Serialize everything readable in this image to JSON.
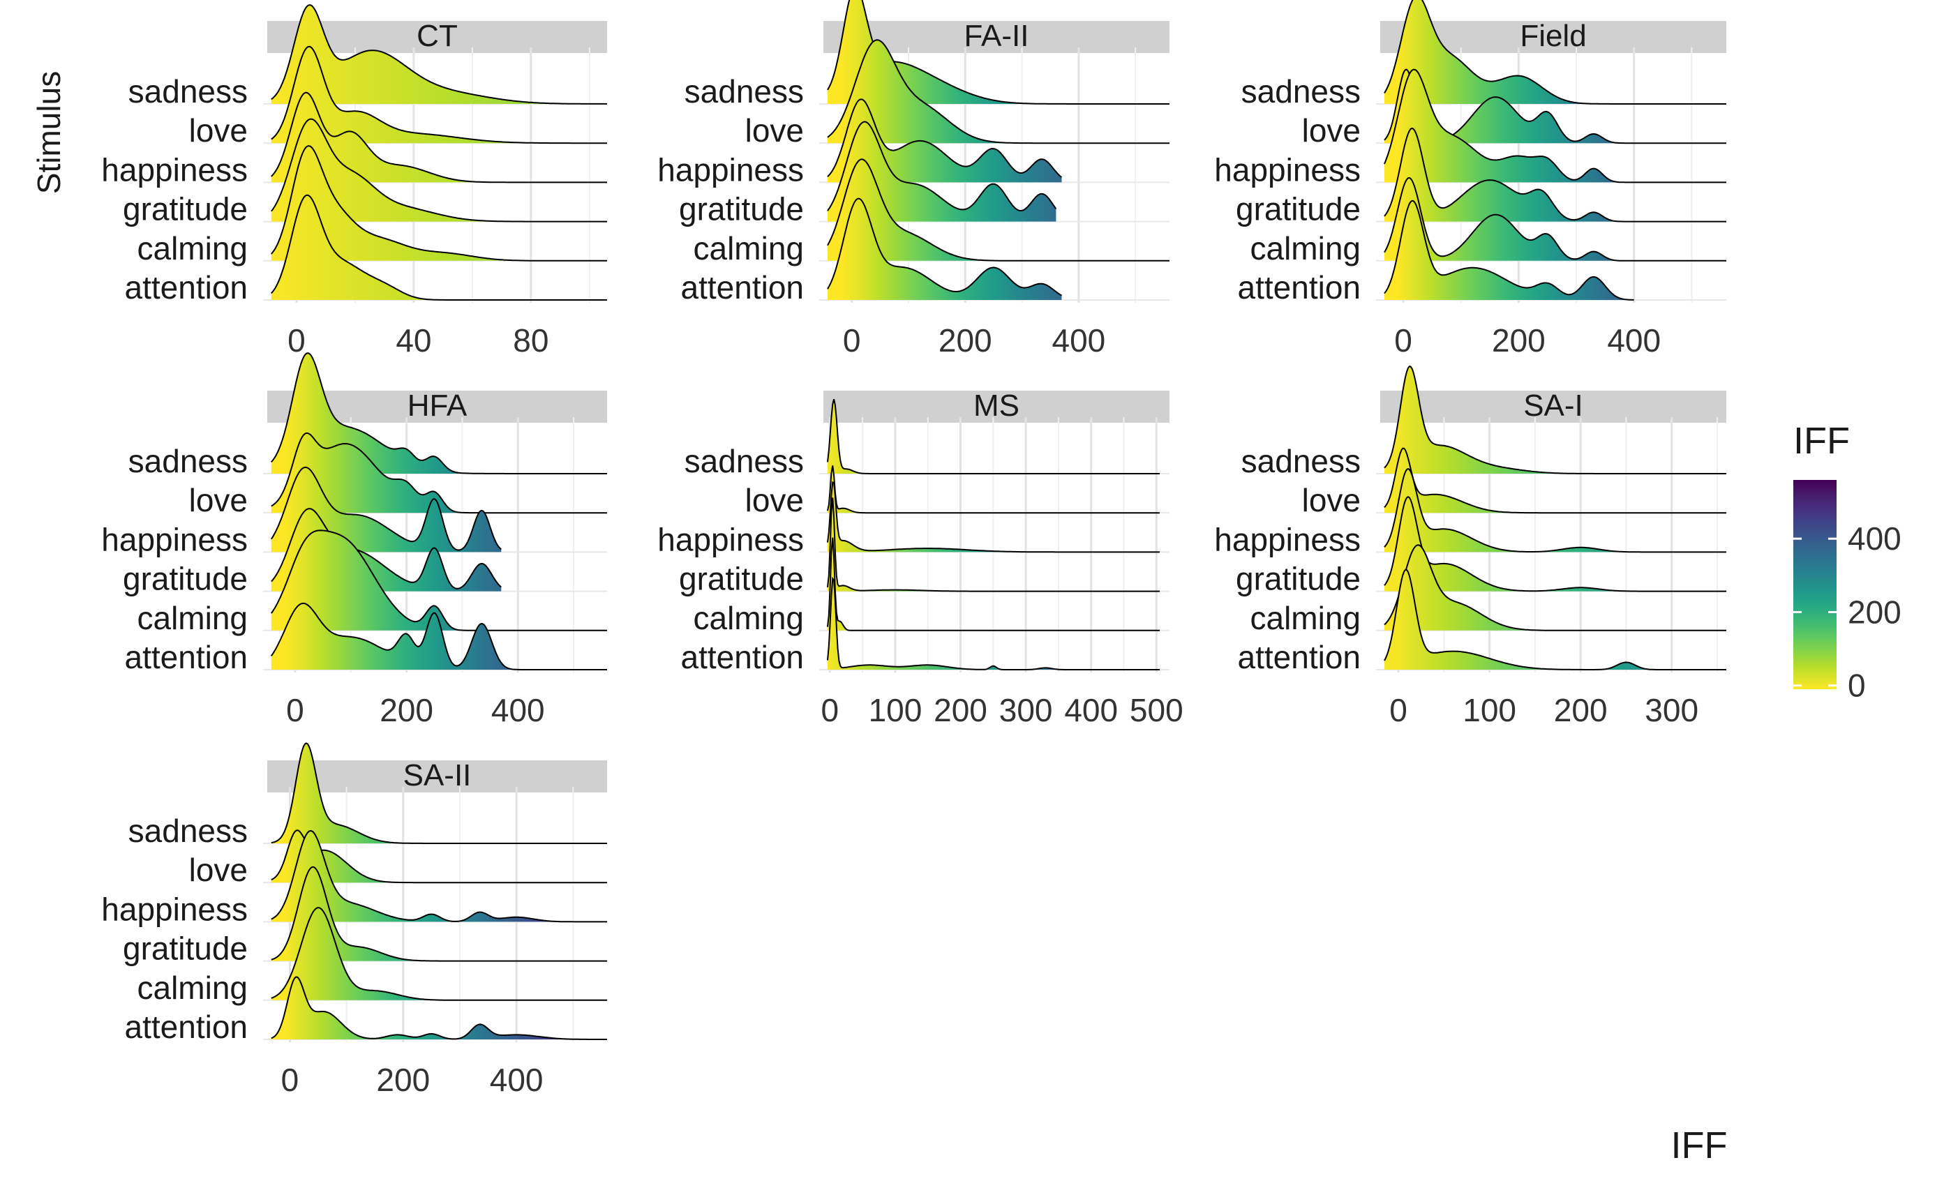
{
  "chart_data": {
    "type": "ridgeline",
    "ylabel": "Stimulus",
    "xlabel": "IFF",
    "legend": {
      "title": "IFF",
      "position": "right",
      "ticks": [
        0,
        200,
        400
      ],
      "range": [
        -10,
        560
      ]
    },
    "categories": [
      "attention",
      "calming",
      "gratitude",
      "happiness",
      "love",
      "sadness"
    ],
    "grid": true,
    "panels": [
      {
        "name": "CT",
        "xlim": [
          -10,
          106
        ],
        "xticks": [
          0,
          40,
          80
        ],
        "series": [
          {
            "name": "attention",
            "peaks": [
              [
                3,
                5,
                1.0
              ],
              [
                15,
                8,
                0.4
              ],
              [
                30,
                6,
                0.12
              ]
            ],
            "xmax": 106
          },
          {
            "name": "calming",
            "peaks": [
              [
                3,
                5,
                1.0
              ],
              [
                12,
                7,
                0.5
              ],
              [
                28,
                9,
                0.22
              ],
              [
                50,
                10,
                0.08
              ]
            ],
            "xmax": 106
          },
          {
            "name": "gratitude",
            "peaks": [
              [
                4,
                6,
                1.0
              ],
              [
                18,
                8,
                0.45
              ],
              [
                35,
                12,
                0.15
              ]
            ],
            "xmax": 106
          },
          {
            "name": "happiness",
            "peaks": [
              [
                3,
                5,
                0.95
              ],
              [
                18,
                6,
                0.5
              ],
              [
                35,
                10,
                0.18
              ]
            ],
            "xmax": 106
          },
          {
            "name": "love",
            "peaks": [
              [
                4,
                5,
                1.0
              ],
              [
                20,
                8,
                0.3
              ],
              [
                40,
                15,
                0.1
              ]
            ],
            "xmax": 106
          },
          {
            "name": "sadness",
            "peaks": [
              [
                4,
                5,
                0.95
              ],
              [
                25,
                12,
                0.55
              ],
              [
                50,
                15,
                0.12
              ]
            ],
            "xmax": 106
          }
        ]
      },
      {
        "name": "FA-II",
        "xlim": [
          -50,
          560
        ],
        "xticks": [
          0,
          200,
          400
        ],
        "series": [
          {
            "name": "attention",
            "peaks": [
              [
                10,
                25,
                1.0
              ],
              [
                90,
                50,
                0.35
              ],
              [
                250,
                30,
                0.35
              ],
              [
                335,
                22,
                0.17
              ]
            ],
            "xmax": 370
          },
          {
            "name": "calming",
            "peaks": [
              [
                15,
                30,
                1.0
              ],
              [
                90,
                50,
                0.3
              ]
            ],
            "xmax": 560
          },
          {
            "name": "gratitude",
            "peaks": [
              [
                20,
                30,
                1.0
              ],
              [
                110,
                50,
                0.4
              ],
              [
                250,
                25,
                0.4
              ],
              [
                335,
                20,
                0.3
              ]
            ],
            "xmax": 360
          },
          {
            "name": "happiness",
            "peaks": [
              [
                15,
                25,
                0.85
              ],
              [
                120,
                50,
                0.45
              ],
              [
                250,
                25,
                0.35
              ],
              [
                335,
                20,
                0.25
              ]
            ],
            "xmax": 370
          },
          {
            "name": "love",
            "peaks": [
              [
                40,
                35,
                1.0
              ],
              [
                120,
                50,
                0.4
              ]
            ],
            "xmax": 560
          },
          {
            "name": "sadness",
            "peaks": [
              [
                5,
                20,
                1.0
              ],
              [
                60,
                60,
                0.4
              ],
              [
                150,
                60,
                0.15
              ]
            ],
            "xmax": 560
          }
        ]
      },
      {
        "name": "Field",
        "xlim": [
          -40,
          560
        ],
        "xticks": [
          0,
          200,
          400
        ],
        "series": [
          {
            "name": "attention",
            "peaks": [
              [
                15,
                20,
                1.0
              ],
              [
                120,
                60,
                0.35
              ],
              [
                250,
                20,
                0.15
              ],
              [
                330,
                20,
                0.25
              ]
            ],
            "xmax": 400
          },
          {
            "name": "calming",
            "peaks": [
              [
                10,
                20,
                0.9
              ],
              [
                160,
                40,
                0.5
              ],
              [
                250,
                18,
                0.25
              ],
              [
                330,
                15,
                0.1
              ]
            ],
            "xmax": 560
          },
          {
            "name": "gratitude",
            "peaks": [
              [
                15,
                20,
                1.0
              ],
              [
                150,
                50,
                0.45
              ],
              [
                240,
                20,
                0.25
              ],
              [
                330,
                15,
                0.1
              ]
            ],
            "xmax": 560
          },
          {
            "name": "happiness",
            "peaks": [
              [
                15,
                25,
                1.0
              ],
              [
                80,
                50,
                0.5
              ],
              [
                200,
                30,
                0.25
              ],
              [
                250,
                20,
                0.2
              ],
              [
                330,
                15,
                0.15
              ]
            ],
            "xmax": 560
          },
          {
            "name": "love",
            "peaks": [
              [
                5,
                15,
                0.8
              ],
              [
                160,
                40,
                0.5
              ],
              [
                250,
                18,
                0.3
              ],
              [
                330,
                15,
                0.1
              ]
            ],
            "xmax": 560
          },
          {
            "name": "sadness",
            "peaks": [
              [
                20,
                25,
                1.0
              ],
              [
                80,
                40,
                0.5
              ],
              [
                200,
                40,
                0.3
              ]
            ],
            "xmax": 560
          }
        ]
      },
      {
        "name": "HFA",
        "xlim": [
          -50,
          560
        ],
        "xticks": [
          0,
          200,
          400
        ],
        "series": [
          {
            "name": "attention",
            "peaks": [
              [
                10,
                30,
                0.6
              ],
              [
                100,
                60,
                0.35
              ],
              [
                200,
                15,
                0.3
              ],
              [
                250,
                15,
                0.6
              ],
              [
                335,
                18,
                0.5
              ]
            ],
            "xmax": 560
          },
          {
            "name": "calming",
            "peaks": [
              [
                15,
                30,
                0.4
              ],
              [
                80,
                60,
                1.0
              ],
              [
                250,
                15,
                0.25
              ]
            ],
            "xmax": 560
          },
          {
            "name": "gratitude",
            "peaks": [
              [
                20,
                30,
                0.7
              ],
              [
                100,
                60,
                0.45
              ],
              [
                250,
                15,
                0.45
              ],
              [
                335,
                18,
                0.3
              ]
            ],
            "xmax": 370
          },
          {
            "name": "happiness",
            "peaks": [
              [
                15,
                30,
                0.8
              ],
              [
                110,
                60,
                0.4
              ],
              [
                250,
                15,
                0.55
              ],
              [
                335,
                15,
                0.45
              ]
            ],
            "xmax": 370
          },
          {
            "name": "love",
            "peaks": [
              [
                15,
                20,
                0.5
              ],
              [
                90,
                60,
                0.75
              ],
              [
                200,
                20,
                0.2
              ],
              [
                250,
                15,
                0.2
              ]
            ],
            "xmax": 560
          },
          {
            "name": "sadness",
            "peaks": [
              [
                20,
                25,
                1.0
              ],
              [
                90,
                70,
                0.5
              ],
              [
                200,
                15,
                0.12
              ],
              [
                250,
                15,
                0.15
              ]
            ],
            "xmax": 560
          }
        ]
      },
      {
        "name": "MS",
        "xlim": [
          -10,
          520
        ],
        "xticks": [
          0,
          100,
          200,
          300,
          400,
          500
        ],
        "tick_labels": [
          "0",
          "100",
          "200",
          "300",
          "400",
          "500"
        ],
        "series": [
          {
            "name": "attention",
            "peaks": [
              [
                5,
                4,
                1.0
              ],
              [
                60,
                30,
                0.05
              ],
              [
                150,
                30,
                0.05
              ],
              [
                250,
                5,
                0.04
              ],
              [
                330,
                10,
                0.02
              ]
            ],
            "xmax": 505
          },
          {
            "name": "calming",
            "peaks": [
              [
                4,
                3,
                1.0
              ],
              [
                15,
                5,
                0.1
              ]
            ],
            "xmax": 505
          },
          {
            "name": "gratitude",
            "peaks": [
              [
                4,
                3,
                1.0
              ],
              [
                20,
                10,
                0.06
              ],
              [
                100,
                40,
                0.015
              ]
            ],
            "xmax": 505
          },
          {
            "name": "happiness",
            "peaks": [
              [
                5,
                4,
                0.7
              ],
              [
                20,
                15,
                0.12
              ],
              [
                150,
                60,
                0.04
              ]
            ],
            "xmax": 505
          },
          {
            "name": "love",
            "peaks": [
              [
                4,
                3,
                0.5
              ],
              [
                20,
                10,
                0.05
              ]
            ],
            "xmax": 505
          },
          {
            "name": "sadness",
            "peaks": [
              [
                6,
                5,
                0.8
              ],
              [
                25,
                10,
                0.05
              ]
            ],
            "xmax": 505
          }
        ]
      },
      {
        "name": "SA-I",
        "xlim": [
          -20,
          360
        ],
        "xticks": [
          0,
          100,
          200,
          300
        ],
        "series": [
          {
            "name": "attention",
            "peaks": [
              [
                8,
                10,
                1.0
              ],
              [
                60,
                40,
                0.2
              ],
              [
                250,
                10,
                0.08
              ]
            ],
            "xmax": 360
          },
          {
            "name": "calming",
            "peaks": [
              [
                20,
                15,
                0.8
              ],
              [
                60,
                30,
                0.3
              ]
            ],
            "xmax": 360
          },
          {
            "name": "gratitude",
            "peaks": [
              [
                10,
                10,
                0.9
              ],
              [
                50,
                30,
                0.3
              ],
              [
                200,
                20,
                0.04
              ]
            ],
            "xmax": 360
          },
          {
            "name": "happiness",
            "peaks": [
              [
                10,
                10,
                0.8
              ],
              [
                50,
                30,
                0.25
              ],
              [
                200,
                20,
                0.05
              ]
            ],
            "xmax": 360
          },
          {
            "name": "love",
            "peaks": [
              [
                5,
                8,
                0.6
              ],
              [
                40,
                30,
                0.2
              ]
            ],
            "xmax": 360
          },
          {
            "name": "sadness",
            "peaks": [
              [
                12,
                10,
                1.0
              ],
              [
                45,
                30,
                0.3
              ],
              [
                110,
                30,
                0.05
              ]
            ],
            "xmax": 360
          }
        ]
      },
      {
        "name": "SA-II",
        "xlim": [
          -40,
          560
        ],
        "xticks": [
          0,
          200,
          400
        ],
        "series": [
          {
            "name": "attention",
            "peaks": [
              [
                10,
                15,
                0.6
              ],
              [
                60,
                30,
                0.3
              ],
              [
                190,
                20,
                0.05
              ],
              [
                250,
                15,
                0.06
              ],
              [
                335,
                15,
                0.15
              ],
              [
                400,
                40,
                0.05
              ]
            ],
            "xmax": 560
          },
          {
            "name": "calming",
            "peaks": [
              [
                50,
                30,
                1.0
              ],
              [
                150,
                40,
                0.1
              ]
            ],
            "xmax": 560
          },
          {
            "name": "gratitude",
            "peaks": [
              [
                40,
                25,
                1.0
              ],
              [
                120,
                40,
                0.15
              ]
            ],
            "xmax": 560
          },
          {
            "name": "happiness",
            "peaks": [
              [
                35,
                25,
                0.9
              ],
              [
                100,
                50,
                0.2
              ],
              [
                250,
                15,
                0.08
              ],
              [
                335,
                15,
                0.1
              ],
              [
                400,
                30,
                0.05
              ]
            ],
            "xmax": 560
          },
          {
            "name": "love",
            "peaks": [
              [
                10,
                15,
                0.4
              ],
              [
                60,
                40,
                0.35
              ]
            ],
            "xmax": 560
          },
          {
            "name": "sadness",
            "peaks": [
              [
                28,
                18,
                1.0
              ],
              [
                80,
                40,
                0.2
              ]
            ],
            "xmax": 560
          }
        ]
      }
    ]
  }
}
